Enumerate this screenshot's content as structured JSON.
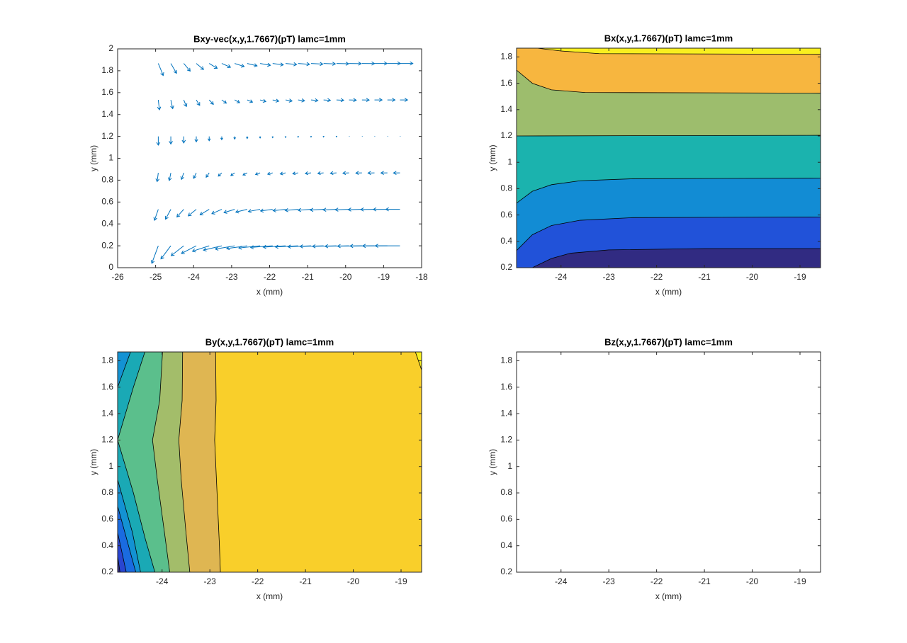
{
  "chart_data": [
    {
      "type": "quiver",
      "title": "Bxy-vec(x,y,1.7667)(pT) lamc=1mm",
      "xlabel": "x (mm)",
      "ylabel": "y (mm)",
      "xlim": [
        -26,
        -18
      ],
      "ylim": [
        0,
        2
      ],
      "xticks": [
        -26,
        -25,
        -24,
        -23,
        -22,
        -21,
        -20,
        -19,
        -18
      ],
      "yticks": [
        0,
        0.2,
        0.4,
        0.6,
        0.8,
        1,
        1.2,
        1.4,
        1.6,
        1.8,
        2
      ],
      "color": "#0072bd",
      "x": [
        -24.93,
        -24.6,
        -24.26,
        -23.93,
        -23.59,
        -23.26,
        -22.92,
        -22.59,
        -22.25,
        -21.92,
        -21.58,
        -21.25,
        -20.91,
        -20.58,
        -20.24,
        -19.91,
        -19.57,
        -19.24,
        -18.9,
        -18.57
      ],
      "rows": [
        {
          "y": 0.2,
          "u": [
            -0.17,
            -0.26,
            -0.33,
            -0.39,
            -0.44,
            -0.48,
            -0.51,
            -0.54,
            -0.56,
            -0.58,
            -0.59,
            -0.6,
            -0.61,
            -0.62,
            -0.63,
            -0.63,
            -0.64,
            -0.64,
            -0.65,
            -0.65
          ],
          "v": [
            -0.16,
            -0.12,
            -0.09,
            -0.07,
            -0.05,
            -0.04,
            -0.03,
            -0.025,
            -0.02,
            -0.015,
            -0.012,
            -0.01,
            -0.008,
            -0.006,
            -0.005,
            -0.004,
            -0.003,
            -0.002,
            -0.001,
            0
          ]
        },
        {
          "y": 0.5333,
          "u": [
            -0.1,
            -0.14,
            -0.18,
            -0.21,
            -0.24,
            -0.26,
            -0.28,
            -0.3,
            -0.31,
            -0.32,
            -0.33,
            -0.34,
            -0.34,
            -0.35,
            -0.35,
            -0.36,
            -0.36,
            -0.36,
            -0.37,
            -0.37
          ],
          "v": [
            -0.1,
            -0.09,
            -0.07,
            -0.06,
            -0.05,
            -0.04,
            -0.03,
            -0.025,
            -0.02,
            -0.015,
            -0.012,
            -0.01,
            -0.008,
            -0.006,
            -0.005,
            -0.004,
            -0.003,
            -0.002,
            -0.001,
            0
          ]
        },
        {
          "y": 0.8667,
          "u": [
            -0.03,
            -0.04,
            -0.06,
            -0.07,
            -0.08,
            -0.09,
            -0.1,
            -0.11,
            -0.12,
            -0.13,
            -0.14,
            -0.14,
            -0.15,
            -0.15,
            -0.16,
            -0.16,
            -0.16,
            -0.17,
            -0.17,
            -0.17
          ],
          "v": [
            -0.08,
            -0.07,
            -0.06,
            -0.05,
            -0.04,
            -0.03,
            -0.025,
            -0.02,
            -0.015,
            -0.012,
            -0.01,
            -0.008,
            -0.006,
            -0.005,
            -0.004,
            -0.003,
            -0.002,
            -0.002,
            -0.001,
            -0.001
          ]
        },
        {
          "y": 1.2,
          "u": [
            0,
            0,
            0,
            0,
            0,
            0,
            0,
            0,
            0,
            0,
            0,
            0,
            0,
            0,
            0,
            0,
            0,
            0,
            0,
            0
          ],
          "v": [
            -0.08,
            -0.07,
            -0.06,
            -0.05,
            -0.04,
            -0.03,
            -0.025,
            -0.02,
            -0.015,
            -0.012,
            -0.01,
            -0.008,
            -0.006,
            -0.005,
            -0.004,
            -0.003,
            -0.002,
            -0.002,
            -0.001,
            -0.001
          ]
        },
        {
          "y": 1.5333,
          "u": [
            0.03,
            0.05,
            0.07,
            0.09,
            0.11,
            0.12,
            0.13,
            0.14,
            0.15,
            0.16,
            0.17,
            0.17,
            0.18,
            0.18,
            0.19,
            0.19,
            0.19,
            0.2,
            0.2,
            0.2
          ],
          "v": [
            -0.09,
            -0.08,
            -0.06,
            -0.05,
            -0.04,
            -0.03,
            -0.025,
            -0.02,
            -0.015,
            -0.012,
            -0.01,
            -0.008,
            -0.006,
            -0.004,
            -0.003,
            -0.002,
            -0.001,
            0,
            0,
            0
          ]
        },
        {
          "y": 1.8667,
          "u": [
            0.13,
            0.15,
            0.17,
            0.19,
            0.21,
            0.23,
            0.25,
            0.26,
            0.27,
            0.28,
            0.29,
            0.3,
            0.31,
            0.31,
            0.32,
            0.32,
            0.33,
            0.33,
            0.34,
            0.34
          ],
          "v": [
            -0.11,
            -0.09,
            -0.07,
            -0.055,
            -0.045,
            -0.035,
            -0.028,
            -0.022,
            -0.017,
            -0.013,
            -0.01,
            -0.008,
            -0.006,
            -0.004,
            -0.003,
            -0.002,
            -0.001,
            0,
            0,
            0
          ]
        }
      ]
    },
    {
      "type": "contourf",
      "title": "Bx(x,y,1.7667)(pT) lamc=1mm",
      "xlabel": "x (mm)",
      "ylabel": "y (mm)",
      "xlim": [
        -24.93,
        -18.57
      ],
      "ylim": [
        0.2,
        1.8667
      ],
      "xticks": [
        -24,
        -23,
        -22,
        -21,
        -20,
        -19
      ],
      "yticks": [
        0.2,
        0.4,
        0.6,
        0.8,
        1,
        1.2,
        1.4,
        1.6,
        1.8
      ],
      "base_color": "#312b82",
      "line_color": "#000000",
      "levels": [
        {
          "color": "#2152d9",
          "x": [
            -24.6,
            -24.2,
            -23.8,
            -23.0,
            -21,
            -18.57
          ],
          "y": [
            0.2,
            0.27,
            0.31,
            0.335,
            0.345,
            0.345
          ]
        },
        {
          "color": "#128cd4",
          "x": [
            -24.93,
            -24.6,
            -24.2,
            -23.6,
            -22.5,
            -18.57
          ],
          "y": [
            0.33,
            0.45,
            0.52,
            0.56,
            0.58,
            0.585
          ]
        },
        {
          "color": "#1bb3ae",
          "x": [
            -24.93,
            -24.6,
            -24.2,
            -23.6,
            -22.5,
            -18.57
          ],
          "y": [
            0.69,
            0.78,
            0.83,
            0.86,
            0.875,
            0.88
          ]
        },
        {
          "color": "#9dbd6d",
          "x": [
            -24.93,
            -18.57
          ],
          "y": [
            1.2,
            1.205
          ]
        },
        {
          "color": "#f7b63f",
          "x": [
            -24.93,
            -24.6,
            -24.2,
            -23.5,
            -18.57
          ],
          "y": [
            1.7,
            1.6,
            1.55,
            1.53,
            1.525
          ]
        },
        {
          "color": "#f9ef1f",
          "x": [
            -24.5,
            -24.0,
            -23.2,
            -18.57
          ],
          "y": [
            1.8667,
            1.845,
            1.825,
            1.82
          ]
        }
      ]
    },
    {
      "type": "contourf",
      "title": "By(x,y,1.7667)(pT) lamc=1mm",
      "xlabel": "x (mm)",
      "ylabel": "y (mm)",
      "xlim": [
        -24.93,
        -18.57
      ],
      "ylim": [
        0.2,
        1.8667
      ],
      "xticks": [
        -24,
        -23,
        -22,
        -21,
        -20,
        -19
      ],
      "yticks": [
        0.2,
        0.4,
        0.6,
        0.8,
        1,
        1.2,
        1.4,
        1.6,
        1.8
      ],
      "base_color": "#312b82",
      "line_color": "#000000",
      "levels": [
        {
          "color": "#2945d1",
          "x": [
            -24.93,
            -24.88
          ],
          "y": [
            0.32,
            0.2
          ]
        },
        {
          "color": "#1a6be0",
          "x": [
            -24.93,
            -24.75
          ],
          "y": [
            0.5,
            0.2
          ]
        },
        {
          "color": "#1392d3",
          "x": [
            -24.93,
            -24.55
          ],
          "y": [
            0.7,
            0.2
          ]
        },
        {
          "color": "#1aa9b5",
          "x": [
            -24.66,
            -24.93,
            -24.93,
            -24.62,
            -24.45
          ],
          "y": [
            1.8667,
            1.6,
            0.9,
            0.5,
            0.2
          ]
        },
        {
          "color": "#5bbf8c",
          "x": [
            -24.36,
            -24.6,
            -24.93,
            -24.6,
            -24.35,
            -24.15
          ],
          "y": [
            1.8667,
            1.6,
            1.2,
            0.8,
            0.45,
            0.2
          ]
        },
        {
          "color": "#a3bd6a",
          "x": [
            -23.99,
            -24.05,
            -24.2,
            -24.1,
            -23.95,
            -23.84
          ],
          "y": [
            1.8667,
            1.5,
            1.2,
            0.9,
            0.5,
            0.2
          ]
        },
        {
          "color": "#dfb652",
          "x": [
            -23.57,
            -23.58,
            -23.65,
            -23.6,
            -23.5,
            -23.42
          ],
          "y": [
            1.8667,
            1.5,
            1.2,
            0.9,
            0.5,
            0.2
          ]
        },
        {
          "color": "#f9cf2a",
          "x": [
            -22.88,
            -22.87,
            -22.9,
            -22.85,
            -22.8,
            -22.78
          ],
          "y": [
            1.8667,
            1.5,
            1.2,
            0.8,
            0.4,
            0.2
          ]
        },
        {
          "color": "#f9f01e",
          "x": [
            -18.7,
            -18.57
          ],
          "y": [
            1.8667,
            1.73
          ]
        }
      ]
    },
    {
      "type": "contourf",
      "title": "Bz(x,y,1.7667)(pT) lamc=1mm",
      "xlabel": "x (mm)",
      "ylabel": "y (mm)",
      "xlim": [
        -24.93,
        -18.57
      ],
      "ylim": [
        0.2,
        1.8667
      ],
      "xticks": [
        -24,
        -23,
        -22,
        -21,
        -20,
        -19
      ],
      "yticks": [
        0.2,
        0.4,
        0.6,
        0.8,
        1,
        1.2,
        1.4,
        1.6,
        1.8
      ]
    }
  ]
}
